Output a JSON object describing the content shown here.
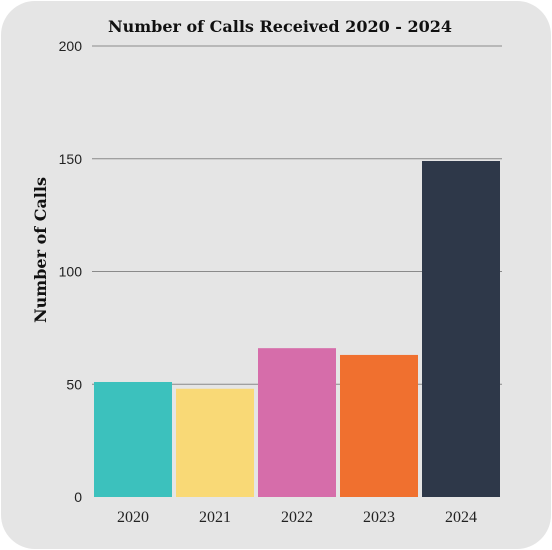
{
  "chart_data": {
    "type": "bar",
    "title": "Number of Calls Received 2020 - 2024",
    "xlabel": "",
    "ylabel": "Number of Calls",
    "categories": [
      "2020",
      "2021",
      "2022",
      "2023",
      "2024"
    ],
    "values": [
      51,
      48,
      66,
      63,
      149
    ],
    "colors": [
      "#3cc1bd",
      "#f9d976",
      "#d66daa",
      "#f0702f",
      "#2e3849"
    ],
    "ylim": [
      0,
      200
    ],
    "yticks": [
      "0",
      "50",
      "100",
      "150",
      "200"
    ],
    "grid": true,
    "legend": "none"
  }
}
